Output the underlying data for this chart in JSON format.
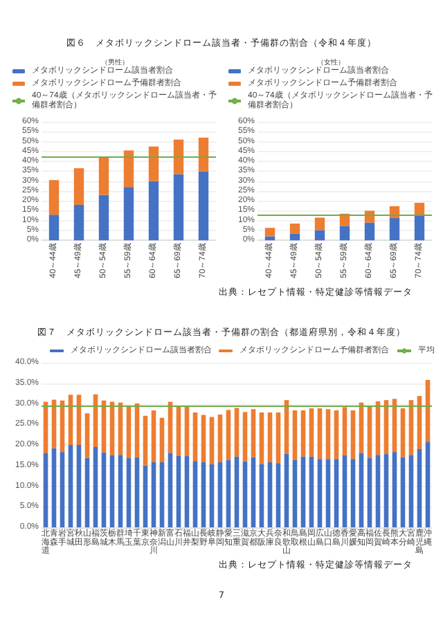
{
  "chart_data": [
    {
      "type": "bar",
      "title": "図６　メタボリックシンドローム該当者・予備群の割合（令和４年度）",
      "subtitle": "（男性）",
      "categories": [
        "40～44歳",
        "45～49歳",
        "50～54歳",
        "55～59歳",
        "60～64歳",
        "65～69歳",
        "70～74歳"
      ],
      "stacked": true,
      "series": [
        {
          "name": "メタボリックシンドローム該当者割合",
          "color": "#4472c4",
          "values": [
            13,
            18,
            23,
            27,
            30,
            33.5,
            35
          ]
        },
        {
          "name": "メタボリックシンドローム予備群者割合",
          "color": "#ed7d31",
          "values": [
            17.5,
            18.5,
            19,
            18.5,
            17.5,
            17.5,
            17
          ]
        }
      ],
      "ref_lines": [
        {
          "axis": "y",
          "value": 42,
          "label": "40～74歳（メタボリックシンドローム該当者・予備群者割合）",
          "color": "#70ad47"
        }
      ],
      "ylim": [
        0,
        60
      ],
      "yticks": [
        {
          "value": 0,
          "label": "0%"
        },
        {
          "value": 5,
          "label": "5%"
        },
        {
          "value": 10,
          "label": "10%"
        },
        {
          "value": 15,
          "label": "15%"
        },
        {
          "value": 20,
          "label": "20%"
        },
        {
          "value": 25,
          "label": "25%"
        },
        {
          "value": 30,
          "label": "30%"
        },
        {
          "value": 35,
          "label": "35%"
        },
        {
          "value": 40,
          "label": "40%"
        },
        {
          "value": 45,
          "label": "45%"
        },
        {
          "value": 50,
          "label": "50%"
        },
        {
          "value": 55,
          "label": "55%"
        },
        {
          "value": 60,
          "label": "60%"
        }
      ],
      "grid": "y",
      "legend": "top left"
    },
    {
      "type": "bar",
      "subtitle": "（女性）",
      "categories": [
        "40～44歳",
        "45～49歳",
        "50～54歳",
        "55～59歳",
        "60～64歳",
        "65～69歳",
        "70～74歳"
      ],
      "stacked": true,
      "series": [
        {
          "name": "メタボリックシンドローム該当者割合",
          "color": "#4472c4",
          "values": [
            2,
            3.3,
            5.2,
            7.3,
            9,
            11.3,
            13
          ]
        },
        {
          "name": "メタボリックシンドローム予備群者割合",
          "color": "#ed7d31",
          "values": [
            4.3,
            5.2,
            6.3,
            6.2,
            6,
            6,
            6
          ]
        }
      ],
      "ref_lines": [
        {
          "axis": "y",
          "value": 13,
          "label": "40～74歳（メタボリックシンドローム該当者・予備群者割合）",
          "color": "#70ad47"
        }
      ],
      "ylim": [
        0,
        60
      ],
      "yticks": [
        {
          "value": 0,
          "label": "0%"
        },
        {
          "value": 5,
          "label": "5%"
        },
        {
          "value": 10,
          "label": "10%"
        },
        {
          "value": 15,
          "label": "15%"
        },
        {
          "value": 20,
          "label": "20%"
        },
        {
          "value": 25,
          "label": "25%"
        },
        {
          "value": 30,
          "label": "30%"
        },
        {
          "value": 35,
          "label": "35%"
        },
        {
          "value": 40,
          "label": "40%"
        },
        {
          "value": 45,
          "label": "45%"
        },
        {
          "value": 50,
          "label": "50%"
        },
        {
          "value": 55,
          "label": "55%"
        },
        {
          "value": 60,
          "label": "60%"
        }
      ],
      "grid": "y",
      "legend": "top left",
      "annotations": [
        "出典：レセプト情報・特定健診等情報データ"
      ]
    },
    {
      "type": "bar",
      "title": "図７　メタボリックシンドローム該当者・予備群の割合（都道府県別，令和４年度）",
      "categories": [
        "北海道",
        "青森",
        "岩手",
        "宮城",
        "秋田",
        "山形",
        "福島",
        "茨城",
        "栃木",
        "群馬",
        "埼玉",
        "千葉",
        "東京",
        "神奈川",
        "新潟",
        "富山",
        "石川",
        "福井",
        "山梨",
        "長野",
        "岐阜",
        "静岡",
        "愛知",
        "三重",
        "滋賀",
        "京都",
        "大阪",
        "兵庫",
        "奈良",
        "和歌山",
        "鳥取",
        "島根",
        "岡山",
        "広島",
        "山口",
        "徳島",
        "香川",
        "愛媛",
        "高知",
        "福岡",
        "佐賀",
        "長崎",
        "熊本",
        "大分",
        "宮崎",
        "鹿児島",
        "沖縄"
      ],
      "stacked": true,
      "series": [
        {
          "name": "メタボリックシンドローム該当者割合",
          "color": "#4472c4",
          "values": [
            18,
            19.2,
            18.3,
            20,
            20,
            16.9,
            19.5,
            18.2,
            17.5,
            17.6,
            16.8,
            17,
            15,
            15.8,
            15.8,
            18.1,
            17.3,
            17.3,
            16.1,
            15.8,
            15.3,
            15.8,
            16.4,
            17.2,
            16,
            17,
            15.4,
            15.8,
            15.6,
            17.9,
            16.3,
            17.2,
            17.2,
            16.6,
            16.6,
            16.6,
            17.5,
            16.6,
            18.1,
            16.8,
            17.6,
            17.8,
            18.3,
            17,
            17.6,
            19,
            20.8
          ]
        },
        {
          "name": "メタボリックシンドローム予備群者割合",
          "color": "#ed7d31",
          "values": [
            12.5,
            11.8,
            12.5,
            12.2,
            12.2,
            10.8,
            12.8,
            12.6,
            13,
            12.7,
            12.8,
            13.1,
            12.1,
            12.6,
            10.8,
            12.4,
            12.1,
            12.1,
            11.8,
            11.5,
            11.5,
            11.6,
            12.1,
            11.8,
            12,
            11.7,
            12.5,
            12.1,
            12.3,
            13,
            12.1,
            11.2,
            11.7,
            12.3,
            12.1,
            11.8,
            11.7,
            11.8,
            12.2,
            12.5,
            13,
            13.1,
            12.9,
            11.9,
            13.3,
            12.9,
            15
          ]
        }
      ],
      "ref_lines": [
        {
          "axis": "y",
          "value": 29.5,
          "label": "平均",
          "color": "#70ad47"
        }
      ],
      "ylim": [
        0,
        40
      ],
      "yticks": [
        {
          "value": 0,
          "label": "0.0%"
        },
        {
          "value": 5,
          "label": "5.0%"
        },
        {
          "value": 10,
          "label": "10.0%"
        },
        {
          "value": 15,
          "label": "15.0%"
        },
        {
          "value": 20,
          "label": "20.0%"
        },
        {
          "value": 25,
          "label": "25.0%"
        },
        {
          "value": 30,
          "label": "30.0%"
        },
        {
          "value": 35,
          "label": "35.0%"
        },
        {
          "value": 40,
          "label": "40.0%"
        }
      ],
      "grid": "y",
      "legend": "top right",
      "annotations": [
        "出典：レセプト情報・特定健診等情報データ",
        "7"
      ]
    }
  ]
}
